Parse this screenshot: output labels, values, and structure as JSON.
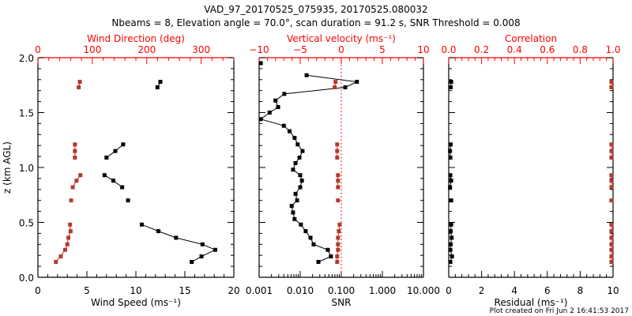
{
  "title_line1": "VAD_97_20170525_075935, 20170525.080032",
  "title_line2": "Nbeams = 8, Elevation angle = 70.0°, scan duration = 91.2 s, SNR Threshold = 0.008",
  "footer": "Plot created on Fri Jun  2 16:41:53 2017",
  "colors": {
    "primary": "#000000",
    "secondary": "#b03a2e",
    "axis_red": "#ff0000"
  },
  "chart_data": [
    {
      "type": "line",
      "panel": "wind",
      "ylabel": "z (km AGL)",
      "ylim": [
        0,
        2.0
      ],
      "yticks": [
        0.0,
        0.5,
        1.0,
        1.5,
        2.0
      ],
      "ytick_labels": [
        "0.0",
        "0.5",
        "1.0",
        "1.5",
        "2.0"
      ],
      "bottom_axis": {
        "label": "Wind Speed (ms⁻¹)",
        "range": [
          0,
          20
        ],
        "ticks": [
          0,
          5,
          10,
          15,
          20
        ],
        "tick_labels": [
          "0",
          "5",
          "10",
          "15",
          "20"
        ]
      },
      "top_axis": {
        "label": "Wind Direction (deg)",
        "range": [
          0,
          360
        ],
        "ticks": [
          0,
          100,
          200,
          300
        ],
        "tick_labels": [
          "0",
          "100",
          "200",
          "300"
        ]
      },
      "series": [
        {
          "name": "Wind Speed",
          "axis": "bottom",
          "color": "#000000",
          "segments": [
            [
              [
                12.5,
                1.78
              ],
              [
                12.2,
                1.73
              ]
            ],
            [
              [
                8.7,
                1.21
              ],
              [
                7.9,
                1.15
              ],
              [
                7.0,
                1.09
              ]
            ],
            [
              [
                6.8,
                0.93
              ],
              [
                7.7,
                0.88
              ],
              [
                8.6,
                0.82
              ]
            ],
            [
              [
                9.2,
                0.7
              ]
            ],
            [
              [
                10.6,
                0.48
              ],
              [
                12.3,
                0.42
              ],
              [
                14.1,
                0.36
              ],
              [
                16.8,
                0.3
              ],
              [
                18.1,
                0.25
              ],
              [
                16.7,
                0.19
              ],
              [
                15.7,
                0.14
              ]
            ]
          ]
        },
        {
          "name": "Wind Direction",
          "axis": "top",
          "color": "#b03a2e",
          "segments": [
            [
              [
                77,
                1.78
              ],
              [
                75,
                1.73
              ]
            ],
            [
              [
                68,
                1.21
              ],
              [
                68,
                1.15
              ],
              [
                68,
                1.09
              ]
            ],
            [
              [
                78,
                0.93
              ],
              [
                71,
                0.88
              ],
              [
                64,
                0.82
              ]
            ],
            [
              [
                61,
                0.7
              ]
            ],
            [
              [
                59,
                0.48
              ],
              [
                60,
                0.42
              ],
              [
                56,
                0.36
              ],
              [
                54,
                0.3
              ],
              [
                50,
                0.25
              ],
              [
                42,
                0.19
              ],
              [
                33,
                0.14
              ]
            ]
          ]
        }
      ]
    },
    {
      "type": "line",
      "panel": "snr",
      "ylim": [
        0,
        2.0
      ],
      "bottom_axis": {
        "label": "SNR",
        "scale": "log",
        "range": [
          0.001,
          10
        ],
        "ticks": [
          0.001,
          0.01,
          0.1,
          1,
          10
        ],
        "tick_labels": [
          "0.001",
          "0.010",
          "0.100",
          "1.000",
          "10.000"
        ]
      },
      "top_axis": {
        "label": "Vertical velocity (ms⁻¹)",
        "range": [
          -10,
          10
        ],
        "ticks": [
          -10,
          -5,
          0,
          5,
          10
        ],
        "tick_labels": [
          "−10",
          "−5",
          "0",
          "5",
          "10"
        ]
      },
      "reference_line": {
        "axis": "bottom",
        "value": 0.1,
        "style": "dotted",
        "color": "#ff0000"
      },
      "series": [
        {
          "name": "SNR",
          "axis": "bottom",
          "color": "#000000",
          "segments": [
            [
              [
                0.0011,
                1.95
              ]
            ],
            [
              [
                0.0143,
                1.84
              ],
              [
                0.24,
                1.78
              ],
              [
                0.125,
                1.73
              ],
              [
                0.0041,
                1.67
              ],
              [
                0.0025,
                1.61
              ],
              [
                0.0029,
                1.55
              ],
              [
                0.0018,
                1.5
              ],
              [
                0.0011,
                1.44
              ],
              [
                0.004,
                1.38
              ],
              [
                0.0055,
                1.33
              ],
              [
                0.0073,
                1.27
              ],
              [
                0.0087,
                1.21
              ],
              [
                0.0114,
                1.15
              ],
              [
                0.0096,
                1.09
              ],
              [
                0.0077,
                1.04
              ],
              [
                0.0067,
                0.98
              ],
              [
                0.01,
                0.93
              ],
              [
                0.011,
                0.88
              ],
              [
                0.01,
                0.82
              ],
              [
                0.0077,
                0.76
              ],
              [
                0.0084,
                0.7
              ],
              [
                0.0062,
                0.65
              ],
              [
                0.0067,
                0.59
              ],
              [
                0.0073,
                0.53
              ],
              [
                0.0104,
                0.48
              ],
              [
                0.0136,
                0.42
              ],
              [
                0.0178,
                0.36
              ],
              [
                0.0212,
                0.3
              ],
              [
                0.047,
                0.25
              ],
              [
                0.056,
                0.19
              ],
              [
                0.0277,
                0.14
              ]
            ]
          ]
        },
        {
          "name": "Vertical velocity",
          "axis": "top",
          "color": "#b03a2e",
          "segments": [
            [
              [
                -0.7,
                1.78
              ],
              [
                -0.8,
                1.73
              ]
            ],
            [
              [
                -0.5,
                1.21
              ],
              [
                -0.5,
                1.15
              ],
              [
                -0.5,
                1.09
              ]
            ],
            [
              [
                -0.4,
                0.93
              ],
              [
                -0.4,
                0.88
              ],
              [
                -0.4,
                0.82
              ]
            ],
            [
              [
                -0.4,
                0.7
              ]
            ],
            [
              [
                -0.2,
                0.48
              ],
              [
                -0.3,
                0.42
              ],
              [
                -0.4,
                0.36
              ],
              [
                -0.4,
                0.3
              ],
              [
                -0.4,
                0.25
              ],
              [
                -0.5,
                0.19
              ],
              [
                -0.5,
                0.14
              ]
            ]
          ]
        }
      ]
    },
    {
      "type": "line",
      "panel": "residual",
      "ylim": [
        0,
        2.0
      ],
      "bottom_axis": {
        "label": "Residual (ms⁻¹)",
        "range": [
          0,
          10
        ],
        "ticks": [
          0,
          2,
          4,
          6,
          8,
          10
        ],
        "tick_labels": [
          "0",
          "2",
          "4",
          "6",
          "8",
          "10"
        ]
      },
      "top_axis": {
        "label": "Correlation",
        "range": [
          0,
          1
        ],
        "ticks": [
          0,
          0.2,
          0.4,
          0.6,
          0.8,
          1.0
        ],
        "tick_labels": [
          "0.0",
          "0.2",
          "0.4",
          "0.6",
          "0.8",
          "1.0"
        ]
      },
      "series": [
        {
          "name": "Residual",
          "axis": "bottom",
          "color": "#000000",
          "segments": [
            [
              [
                0.15,
                1.78
              ],
              [
                0.12,
                1.73
              ]
            ],
            [
              [
                0.12,
                1.21
              ],
              [
                0.08,
                1.15
              ],
              [
                0.1,
                1.09
              ]
            ],
            [
              [
                0.1,
                0.93
              ],
              [
                0.15,
                0.88
              ],
              [
                0.08,
                0.82
              ]
            ],
            [
              [
                0.15,
                0.7
              ]
            ],
            [
              [
                0.15,
                0.48
              ],
              [
                0.12,
                0.42
              ],
              [
                0.18,
                0.36
              ],
              [
                0.12,
                0.3
              ],
              [
                0.1,
                0.25
              ],
              [
                0.2,
                0.19
              ],
              [
                0.1,
                0.14
              ]
            ]
          ]
        },
        {
          "name": "Correlation",
          "axis": "top",
          "color": "#b03a2e",
          "segments": [
            [
              [
                0.99,
                1.78
              ],
              [
                0.99,
                1.73
              ]
            ],
            [
              [
                0.99,
                1.21
              ],
              [
                0.99,
                1.15
              ],
              [
                0.99,
                1.09
              ]
            ],
            [
              [
                0.99,
                0.93
              ],
              [
                0.99,
                0.88
              ],
              [
                0.99,
                0.82
              ]
            ],
            [
              [
                0.99,
                0.7
              ]
            ],
            [
              [
                0.99,
                0.48
              ],
              [
                0.99,
                0.42
              ],
              [
                0.99,
                0.36
              ],
              [
                0.99,
                0.3
              ],
              [
                0.99,
                0.25
              ],
              [
                0.99,
                0.19
              ],
              [
                0.99,
                0.14
              ]
            ]
          ]
        }
      ]
    }
  ]
}
